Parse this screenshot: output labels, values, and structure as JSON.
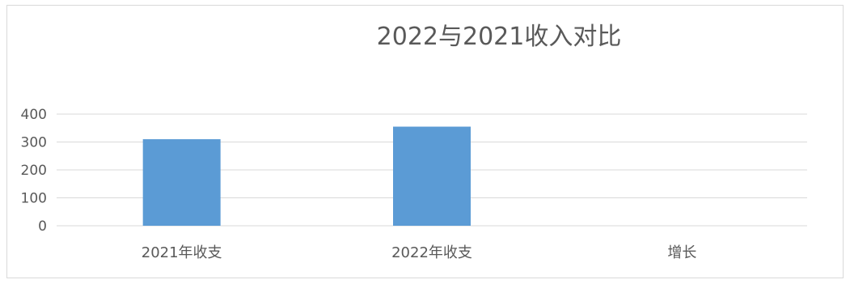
{
  "chart_data": {
    "type": "bar",
    "title": "2022与2021收入对比",
    "categories": [
      "2021年收支",
      "2022年收支",
      "增长"
    ],
    "values": [
      310,
      355,
      0
    ],
    "ylim": [
      0,
      400
    ],
    "yticks": [
      0,
      100,
      200,
      300,
      400
    ],
    "grid": true,
    "legend": "none",
    "bar_color": "#5b9bd5",
    "xlabel": "",
    "ylabel": ""
  }
}
